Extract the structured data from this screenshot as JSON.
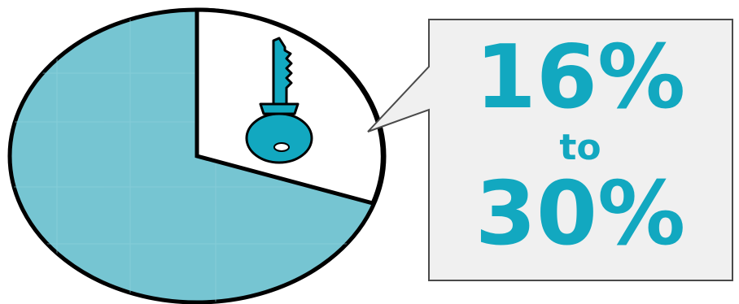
{
  "colors": {
    "accent": "#12A8C0",
    "pie_fill": "#76C5D2",
    "slice_fill": "#FFFFFF",
    "outline": "#000000",
    "callout_fill": "#F0F0F0",
    "callout_border": "#4A4A4A",
    "key_fill": "#12A8C0"
  },
  "icon": "key-icon",
  "callout": {
    "low": "16%",
    "connector": "to",
    "high": "30%"
  }
}
